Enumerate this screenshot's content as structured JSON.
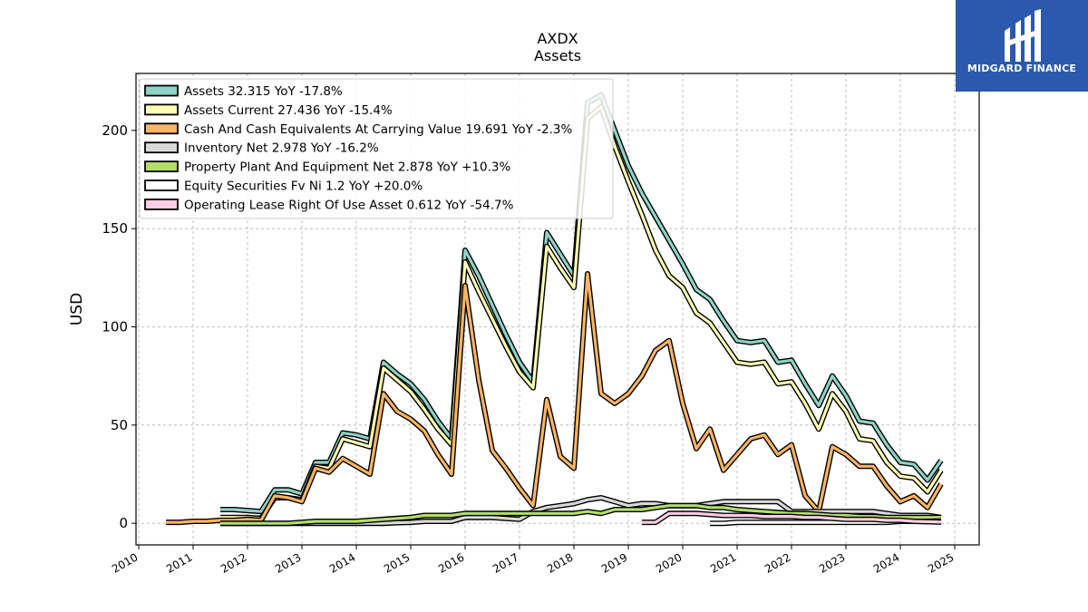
{
  "logo": {
    "text": "MIDGARD FINANCE",
    "icon": "midgard-logo-icon",
    "background": "#2a59ad"
  },
  "chart_data": {
    "type": "line",
    "title": "AXDX",
    "subtitle": "Assets",
    "ylabel": "USD",
    "xlabel": "",
    "xlim": [
      2009.95,
      2025.45
    ],
    "ylim": [
      -11,
      229
    ],
    "x_ticks": [
      2010,
      2011,
      2012,
      2013,
      2014,
      2015,
      2016,
      2017,
      2018,
      2019,
      2020,
      2021,
      2022,
      2023,
      2024,
      2025
    ],
    "y_ticks": [
      0,
      50,
      100,
      150,
      200
    ],
    "grid": true,
    "legend_position": "top-left",
    "series": [
      {
        "name": "Assets  32.315 YoY -17.8%",
        "color": "#8dd3c7",
        "x": [
          2011.5,
          2011.75,
          2012.0,
          2012.25,
          2012.5,
          2012.75,
          2013.0,
          2013.25,
          2013.5,
          2013.75,
          2014.0,
          2014.25,
          2014.5,
          2014.75,
          2015.0,
          2015.25,
          2015.5,
          2015.75,
          2016.0,
          2016.25,
          2016.5,
          2016.75,
          2017.0,
          2017.25,
          2017.5,
          2017.75,
          2018.0,
          2018.25,
          2018.5,
          2018.75,
          2019.0,
          2019.25,
          2019.5,
          2019.75,
          2020.0,
          2020.25,
          2020.5,
          2020.75,
          2021.0,
          2021.25,
          2021.5,
          2021.75,
          2022.0,
          2022.25,
          2022.5,
          2022.75,
          2023.0,
          2023.25,
          2023.5,
          2023.75,
          2024.0,
          2024.25,
          2024.5,
          2024.75
        ],
        "values": [
          7,
          7,
          6.5,
          6,
          17,
          17,
          15,
          31,
          31,
          46,
          45,
          43,
          82,
          76,
          71,
          63,
          52,
          43,
          139,
          126,
          111,
          96,
          82,
          72,
          148,
          137,
          126,
          214,
          218,
          200,
          182,
          168,
          156,
          144,
          132,
          119,
          114,
          103,
          93,
          92,
          93,
          82,
          83,
          71,
          60,
          75,
          65,
          52,
          51,
          40,
          31,
          30,
          22,
          32
        ]
      },
      {
        "name": "Assets Current  27.436 YoY -15.4%",
        "color": "#ffffb3",
        "x": [
          2011.5,
          2011.75,
          2012.0,
          2012.25,
          2012.5,
          2012.75,
          2013.0,
          2013.25,
          2013.5,
          2013.75,
          2014.0,
          2014.25,
          2014.5,
          2014.75,
          2015.0,
          2015.25,
          2015.5,
          2015.75,
          2016.0,
          2016.25,
          2016.5,
          2016.75,
          2017.0,
          2017.25,
          2017.5,
          2017.75,
          2018.0,
          2018.25,
          2018.5,
          2018.75,
          2019.0,
          2019.25,
          2019.5,
          2019.75,
          2020.0,
          2020.25,
          2020.5,
          2020.75,
          2021.0,
          2021.25,
          2021.5,
          2021.75,
          2022.0,
          2022.25,
          2022.5,
          2022.75,
          2023.0,
          2023.25,
          2023.5,
          2023.75,
          2024.0,
          2024.25,
          2024.5,
          2024.75
        ],
        "values": [
          3,
          3,
          3,
          2.5,
          13,
          13,
          12,
          29,
          28,
          43,
          41,
          39,
          79,
          73,
          67,
          58,
          48,
          40,
          133,
          118,
          104,
          90,
          77,
          69,
          141,
          130,
          120,
          206,
          212,
          192,
          174,
          157,
          139,
          126,
          120,
          107,
          102,
          92,
          82,
          81,
          82,
          71,
          72,
          61,
          48,
          66,
          57,
          43,
          42,
          31,
          24,
          23,
          16,
          27
        ]
      },
      {
        "name": "Cash And Cash Equivalents At Carrying Value  19.691 YoY -2.3%",
        "color": "#fdb462",
        "x": [
          2010.5,
          2010.75,
          2011.0,
          2011.25,
          2011.5,
          2011.75,
          2012.0,
          2012.25,
          2012.5,
          2012.75,
          2013.0,
          2013.25,
          2013.5,
          2013.75,
          2014.0,
          2014.25,
          2014.5,
          2014.75,
          2015.0,
          2015.25,
          2015.5,
          2015.75,
          2016.0,
          2016.25,
          2016.5,
          2016.75,
          2017.0,
          2017.25,
          2017.5,
          2017.75,
          2018.0,
          2018.25,
          2018.5,
          2018.75,
          2019.0,
          2019.25,
          2019.5,
          2019.75,
          2020.0,
          2020.25,
          2020.5,
          2020.75,
          2021.0,
          2021.25,
          2021.5,
          2021.75,
          2022.0,
          2022.25,
          2022.5,
          2022.75,
          2023.0,
          2023.25,
          2023.5,
          2023.75,
          2024.0,
          2024.25,
          2024.5,
          2024.75
        ],
        "values": [
          0.5,
          0.5,
          1,
          1,
          1.5,
          1.5,
          2,
          1.5,
          14,
          13,
          11,
          28,
          26,
          33,
          29,
          25,
          66,
          57,
          53,
          47,
          35,
          25,
          121,
          73,
          37,
          28,
          18,
          9,
          63,
          34,
          28,
          127,
          66,
          61,
          66,
          75,
          88,
          93,
          61,
          38,
          48,
          27,
          35,
          43,
          45,
          35,
          40,
          14,
          6,
          39,
          35,
          29,
          29,
          19,
          11,
          14,
          8,
          20
        ]
      },
      {
        "name": "Inventory Net  2.978 YoY -16.2%",
        "color": "#d9d9d9",
        "x": [
          2011.5,
          2011.75,
          2012.0,
          2012.25,
          2012.5,
          2012.75,
          2013.0,
          2013.25,
          2013.5,
          2013.75,
          2014.0,
          2014.25,
          2014.5,
          2014.75,
          2015.0,
          2015.25,
          2015.5,
          2015.75,
          2016.0,
          2016.25,
          2016.5,
          2016.75,
          2017.0,
          2017.25,
          2017.5,
          2017.75,
          2018.0,
          2018.25,
          2018.5,
          2018.75,
          2019.0,
          2019.25,
          2019.5,
          2019.75,
          2020.0,
          2020.25,
          2020.5,
          2020.75,
          2021.0,
          2021.25,
          2021.5,
          2021.75,
          2022.0,
          2022.25,
          2022.5,
          2022.75,
          2023.0,
          2023.25,
          2023.5,
          2023.75,
          2024.0,
          2024.25,
          2024.5,
          2024.75
        ],
        "values": [
          0,
          0,
          0,
          0,
          0,
          0,
          0,
          0,
          0,
          0,
          0,
          0,
          0,
          0.3,
          0.5,
          1,
          1,
          1,
          3,
          3,
          3,
          2.5,
          2,
          6,
          8,
          9,
          10,
          12,
          13,
          11,
          9,
          10,
          10,
          9,
          9,
          9,
          10,
          11,
          11,
          11,
          11,
          11,
          6,
          6,
          6,
          6,
          6,
          6,
          6,
          5,
          4,
          4,
          4,
          3
        ]
      },
      {
        "name": "Property Plant And Equipment Net  2.878 YoY +10.3%",
        "color": "#b3de69",
        "x": [
          2011.5,
          2011.75,
          2012.0,
          2012.25,
          2012.5,
          2012.75,
          2013.0,
          2013.25,
          2013.5,
          2013.75,
          2014.0,
          2014.25,
          2014.5,
          2014.75,
          2015.0,
          2015.25,
          2015.5,
          2015.75,
          2016.0,
          2016.25,
          2016.5,
          2016.75,
          2017.0,
          2017.25,
          2017.5,
          2017.75,
          2018.0,
          2018.25,
          2018.5,
          2018.75,
          2019.0,
          2019.25,
          2019.5,
          2019.75,
          2020.0,
          2020.25,
          2020.5,
          2020.75,
          2021.0,
          2021.25,
          2021.5,
          2021.75,
          2022.0,
          2022.25,
          2022.5,
          2022.75,
          2023.0,
          2023.25,
          2023.5,
          2023.75,
          2024.0,
          2024.25,
          2024.5,
          2024.75
        ],
        "values": [
          0,
          0,
          0,
          0,
          0,
          0,
          0.5,
          1,
          1,
          1,
          1,
          1.5,
          2,
          2.5,
          3,
          4,
          4,
          4,
          5,
          5,
          5,
          5,
          5,
          5,
          5,
          5,
          5,
          6,
          5,
          7,
          7,
          7,
          8,
          9,
          9,
          9,
          8,
          8,
          7,
          6.5,
          6,
          5.5,
          5,
          5,
          4.5,
          4,
          4,
          3.5,
          3.5,
          3,
          3,
          3,
          3,
          3
        ]
      },
      {
        "name": "Equity Securities Fv Ni  1.2 YoY +20.0%",
        "color": "#ffffff",
        "x": [
          2020.5,
          2020.75,
          2021.0,
          2021.25,
          2021.5,
          2021.75,
          2022.0,
          2022.25,
          2022.5,
          2022.75,
          2023.0,
          2023.25,
          2023.5,
          2023.75,
          2024.0,
          2024.25,
          2024.5,
          2024.75
        ],
        "values": [
          0,
          0,
          0.5,
          0.5,
          0.5,
          0.5,
          0.5,
          0.5,
          0.5,
          0.5,
          0.5,
          0.5,
          0.5,
          0.5,
          1,
          1,
          1,
          1.2
        ]
      },
      {
        "name": "Operating Lease Right Of Use Asset  0.612 YoY -54.7%",
        "color": "#fccde5",
        "x": [
          2019.25,
          2019.5,
          2019.75,
          2020.0,
          2020.25,
          2020.5,
          2020.75,
          2021.0,
          2021.25,
          2021.5,
          2021.75,
          2022.0,
          2022.25,
          2022.5,
          2022.75,
          2023.0,
          2023.25,
          2023.5,
          2023.75,
          2024.0,
          2024.25,
          2024.5,
          2024.75
        ],
        "values": [
          0.5,
          0.5,
          5,
          5,
          5,
          4.5,
          4,
          4,
          4,
          3.5,
          3.5,
          3.5,
          3,
          3,
          2.5,
          2,
          2,
          2,
          1.5,
          1.5,
          1,
          0.8,
          0.6
        ]
      }
    ]
  }
}
